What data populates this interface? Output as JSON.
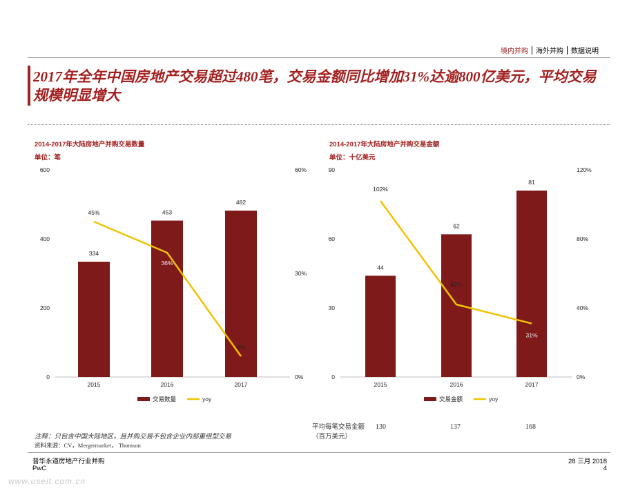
{
  "nav": {
    "items": [
      "境内并购",
      "海外并购",
      "数据说明"
    ]
  },
  "headline": "2017年全年中国房地产交易超过480笔，交易金额同比增加31%达逾800亿美元，平均交易规模明显增大",
  "colors": {
    "accent": "#a32020",
    "bar": "#7f1a1a",
    "line": "#f2c200"
  },
  "left": {
    "title": "2014-2017年大陆房地产并购交易数量",
    "unit": "单位：笔"
  },
  "right": {
    "title": "2014-2017年大陆房地产并购交易金额",
    "unit": "单位：十亿美元"
  },
  "chart_data": [
    {
      "type": "bar+line",
      "title": "2014-2017年大陆房地产并购交易数量",
      "categories": [
        "2015",
        "2016",
        "2017"
      ],
      "bar_series": {
        "name": "交易数量",
        "values": [
          334,
          453,
          482
        ],
        "labels": [
          "334",
          "453",
          "482"
        ]
      },
      "line_series": {
        "name": "yoy",
        "values": [
          45,
          36,
          6
        ],
        "labels": [
          "45%",
          "36%",
          "6%"
        ]
      },
      "ylim_left": [
        0,
        600
      ],
      "yticks_left": [
        "0",
        "200",
        "400",
        "600"
      ],
      "ylim_right": [
        0,
        60
      ],
      "yticks_right": [
        "0%",
        "30%",
        "60%"
      ],
      "legend": "bottom-center"
    },
    {
      "type": "bar+line",
      "title": "2014-2017年大陆房地产并购交易金额",
      "categories": [
        "2015",
        "2016",
        "2017"
      ],
      "bar_series": {
        "name": "交易金额",
        "values": [
          44,
          62,
          81
        ],
        "labels": [
          "44",
          "62",
          "81"
        ]
      },
      "line_series": {
        "name": "yoy",
        "values": [
          102,
          42,
          31
        ],
        "labels": [
          "102%",
          "42%",
          "31%"
        ]
      },
      "ylim_left": [
        0,
        90
      ],
      "yticks_left": [
        "0",
        "30",
        "60",
        "90"
      ],
      "ylim_right": [
        0,
        120
      ],
      "yticks_right": [
        "0%",
        "40%",
        "80%",
        "120%"
      ],
      "legend": "bottom-center"
    }
  ],
  "notes": {
    "note": "注释：只包含中国大陆地区，且并购交易不包含企业内部重组型交易",
    "source": "资料来源：CV，Mergermarket， Thomson"
  },
  "avg": {
    "label_line1": "平均每笔交易金额",
    "label_line2": "（百万美元）",
    "values": [
      "130",
      "137",
      "168"
    ]
  },
  "footer": {
    "left_line1": "普华永道房地产行业并购",
    "left_line2": "PwC",
    "date": "28 三月 2018",
    "page": "4"
  },
  "watermark": "www.useit.com.cn"
}
